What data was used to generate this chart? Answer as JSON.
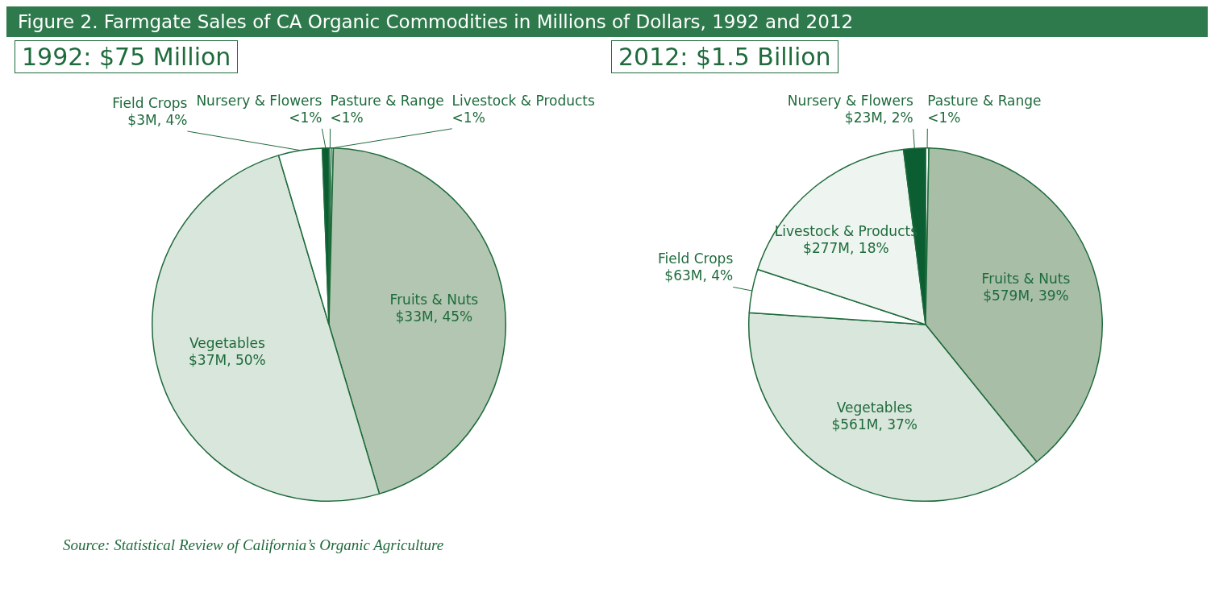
{
  "chart_data": [
    {
      "type": "pie",
      "title": "Figure 2. Farmgate Sales of CA Organic Commodities in Millions of Dollars, 1992 and 2012",
      "subtitle": "1992: $75 Million",
      "categories": [
        "Pasture & Range",
        "Livestock & Products",
        "Fruits & Nuts",
        "Vegetables",
        "Field Crops",
        "Nursery & Flowers"
      ],
      "values": [
        0.2,
        0.2,
        45,
        50,
        4,
        0.6
      ],
      "colors": [
        "#ffffff",
        "#ffffff",
        "#b3c6b1",
        "#d9e6db",
        "#ffffff",
        "#0b5e32"
      ],
      "value_labels": [
        "<1%",
        "<1%",
        "$33M, 45%",
        "$37M, 50%",
        "$3M, 4%",
        "<1%"
      ],
      "annotations": [
        "Source: Statistical Review of California’s Organic Agriculture"
      ]
    },
    {
      "type": "pie",
      "subtitle": "2012: $1.5 Billion",
      "categories": [
        "Pasture & Range",
        "Fruits & Nuts",
        "Vegetables",
        "Field Crops",
        "Livestock & Products",
        "Nursery & Flowers"
      ],
      "values": [
        0.3,
        39,
        37,
        4,
        18,
        2
      ],
      "colors": [
        "#ffffff",
        "#a9bea7",
        "#d9e6db",
        "#ffffff",
        "#eef4ef",
        "#0b5e32"
      ],
      "value_labels": [
        "<1%",
        "$579M, 39%",
        "$561M, 37%",
        "$63M, 4%",
        "$277M, 18%",
        "$23M, 2%"
      ]
    }
  ]
}
